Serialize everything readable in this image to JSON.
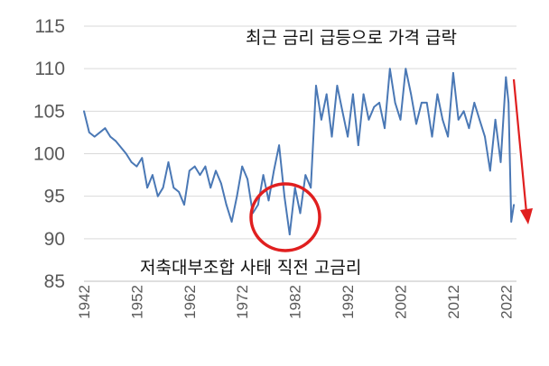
{
  "chart_data": {
    "type": "line",
    "title": "",
    "xlabel": "",
    "ylabel": "",
    "xlim": [
      1942,
      2024
    ],
    "ylim": [
      85,
      115
    ],
    "grid": "horizontal",
    "y_ticks": [
      "85",
      "90",
      "95",
      "100",
      "105",
      "110",
      "115"
    ],
    "x_ticks": [
      "1942",
      "1952",
      "1962",
      "1972",
      "1982",
      "1992",
      "2002",
      "2012",
      "2022"
    ],
    "series": [
      {
        "color": "#4a78b5",
        "x": [
          1942,
          1943,
          1944,
          1946,
          1947,
          1948,
          1950,
          1951,
          1952,
          1953,
          1954,
          1955,
          1956,
          1957,
          1958,
          1959,
          1960,
          1961,
          1962,
          1963,
          1964,
          1965,
          1966,
          1967,
          1968,
          1969,
          1970,
          1971,
          1972,
          1973,
          1974,
          1975,
          1976,
          1977,
          1978,
          1979,
          1980,
          1981,
          1982,
          1983,
          1984,
          1985,
          1986,
          1987,
          1988,
          1989,
          1990,
          1991,
          1992,
          1993,
          1994,
          1995,
          1996,
          1997,
          1998,
          1999,
          2000,
          2001,
          2002,
          2003,
          2004,
          2005,
          2006,
          2007,
          2008,
          2009,
          2010,
          2011,
          2012,
          2013,
          2014,
          2015,
          2016,
          2017,
          2018,
          2019,
          2020,
          2021,
          2022,
          2022.5,
          2023,
          2023.5
        ],
        "values": [
          105,
          102.5,
          102,
          103,
          102,
          101.5,
          100,
          99,
          98.5,
          99.5,
          96,
          97.5,
          95,
          96,
          99,
          96,
          95.5,
          94,
          98,
          98.5,
          97.5,
          98.5,
          96,
          98,
          96.5,
          94,
          92,
          95,
          98.5,
          97,
          93,
          94,
          97.5,
          94.5,
          98,
          101,
          95,
          90.5,
          96,
          93,
          97.5,
          96,
          108,
          104,
          107,
          102,
          108,
          105,
          102,
          107,
          101,
          107,
          104,
          105.5,
          106,
          103,
          110,
          106,
          104,
          110,
          107,
          103.5,
          106,
          106,
          102,
          107,
          104,
          102,
          109.5,
          104,
          105,
          103,
          106,
          104,
          102,
          98,
          104,
          99,
          109,
          106,
          92,
          94
        ]
      }
    ],
    "annotations": {
      "top_right": "최근 금리 급등으로 가격 급락",
      "bottom_center": "저축대부조합 사태 직전 고금리"
    }
  }
}
